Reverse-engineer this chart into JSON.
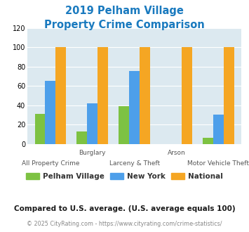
{
  "title_line1": "2019 Pelham Village",
  "title_line2": "Property Crime Comparison",
  "title_color": "#1a7abf",
  "categories": [
    "All Property Crime",
    "Burglary",
    "Larceny & Theft",
    "Arson",
    "Motor Vehicle Theft"
  ],
  "category_top_labels": [
    "",
    "Burglary",
    "",
    "Arson",
    ""
  ],
  "category_bot_labels": [
    "All Property Crime",
    "",
    "Larceny & Theft",
    "",
    "Motor Vehicle Theft"
  ],
  "pelham_values": [
    31,
    13,
    39,
    0,
    6
  ],
  "newyork_values": [
    65,
    42,
    75,
    0,
    30
  ],
  "national_values": [
    100,
    100,
    100,
    100,
    100
  ],
  "pelham_color": "#7dc242",
  "newyork_color": "#4d9fea",
  "national_color": "#f5a623",
  "ylim": [
    0,
    120
  ],
  "yticks": [
    0,
    20,
    40,
    60,
    80,
    100,
    120
  ],
  "plot_bg": "#dce9f0",
  "legend_labels": [
    "Pelham Village",
    "New York",
    "National"
  ],
  "footnote1": "Compared to U.S. average. (U.S. average equals 100)",
  "footnote2": "© 2025 CityRating.com - https://www.cityrating.com/crime-statistics/",
  "footnote1_color": "#1a1a1a",
  "footnote2_color": "#888888",
  "footnote2_url_color": "#1a7abf"
}
